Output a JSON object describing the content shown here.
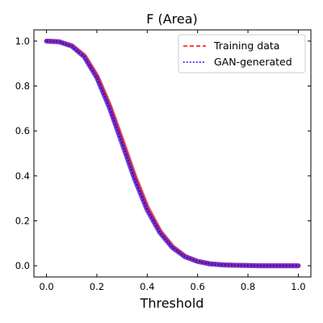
{
  "chart_data": {
    "type": "line",
    "title": "F (Area)",
    "xlabel": "Threshold",
    "ylabel": "",
    "xlim": [
      -0.05,
      1.05
    ],
    "ylim": [
      -0.05,
      1.05
    ],
    "xticks": [
      0.0,
      0.2,
      0.4,
      0.6,
      0.8,
      1.0
    ],
    "yticks": [
      0.0,
      0.2,
      0.4,
      0.6,
      0.8,
      1.0
    ],
    "xtick_labels": [
      "0.0",
      "0.2",
      "0.4",
      "0.6",
      "0.8",
      "1.0"
    ],
    "ytick_labels": [
      "0.0",
      "0.2",
      "0.4",
      "0.6",
      "0.8",
      "1.0"
    ],
    "grid": false,
    "legend_position": "top-right",
    "x": [
      0.0,
      0.05,
      0.1,
      0.15,
      0.2,
      0.25,
      0.3,
      0.35,
      0.4,
      0.45,
      0.5,
      0.55,
      0.6,
      0.65,
      0.7,
      0.75,
      0.8,
      0.85,
      0.9,
      0.95,
      1.0
    ],
    "series": [
      {
        "name": "Training data",
        "style": "dashed",
        "color": "#ff0000",
        "band_color": "#e8474d",
        "values": [
          1.0,
          0.997,
          0.98,
          0.935,
          0.845,
          0.715,
          0.56,
          0.4,
          0.26,
          0.155,
          0.085,
          0.042,
          0.02,
          0.009,
          0.004,
          0.002,
          0.001,
          0.0,
          0.0,
          0.0,
          0.0
        ]
      },
      {
        "name": "GAN-generated",
        "style": "dotted",
        "color": "#0000ff",
        "band_color": "#5a2bd6",
        "values": [
          1.0,
          0.997,
          0.978,
          0.93,
          0.837,
          0.703,
          0.545,
          0.385,
          0.248,
          0.148,
          0.081,
          0.04,
          0.019,
          0.008,
          0.004,
          0.002,
          0.001,
          0.0,
          0.0,
          0.0,
          0.0
        ]
      }
    ]
  }
}
